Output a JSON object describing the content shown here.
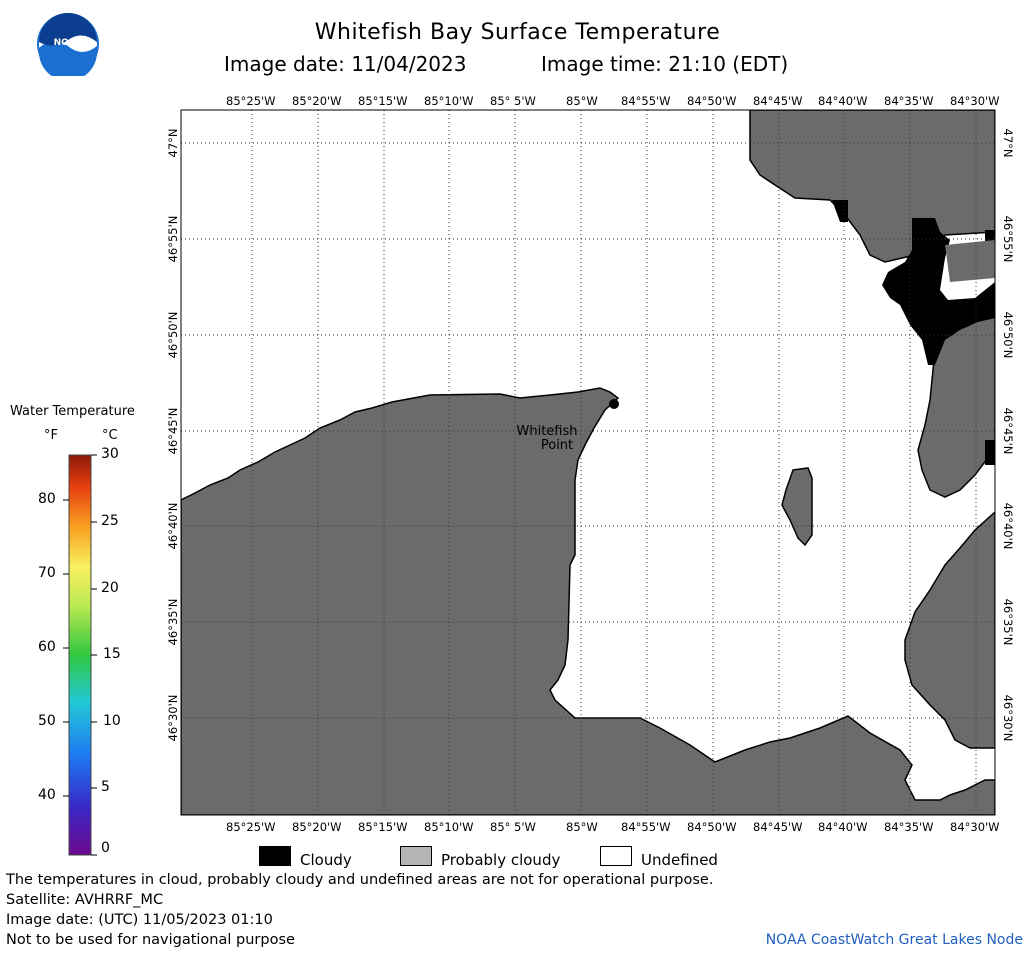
{
  "title": "Whitefish Bay Surface Temperature",
  "image_date_label": "Image date: 11/04/2023",
  "image_time_label": "Image time: 21:10 (EDT)",
  "logo_text": "NOAA",
  "lon_ticks": [
    "85°25'W",
    "85°20'W",
    "85°15'W",
    "85°10'W",
    "85° 5'W",
    "85°W",
    "84°55'W",
    "84°50'W",
    "84°45'W",
    "84°40'W",
    "84°35'W",
    "84°30'W"
  ],
  "lat_ticks": [
    "47°N",
    "46°55'N",
    "46°50'N",
    "46°45'N",
    "46°40'N",
    "46°35'N",
    "46°30'N"
  ],
  "place_label": {
    "line1": "Whitefish",
    "line2": "Point"
  },
  "colorbar": {
    "title": "Water Temperature",
    "unit_f": "°F",
    "unit_c": "°C",
    "f_ticks": [
      "80",
      "70",
      "60",
      "50",
      "40"
    ],
    "c_ticks": [
      "30",
      "25",
      "20",
      "15",
      "10",
      "5",
      "0"
    ],
    "range_c": [
      0,
      30
    ]
  },
  "legend": [
    {
      "label": "Cloudy",
      "color": "#000000"
    },
    {
      "label": "Probably cloudy",
      "color": "#b4b4b4"
    },
    {
      "label": "Undefined",
      "color": "#ffffff"
    }
  ],
  "colors": {
    "land": "#6b6b6b",
    "water": "#ffffff",
    "cloud": "#000000"
  },
  "footer": {
    "line1": "The temperatures in cloud, probably cloudy and undefined areas are not for operational purpose.",
    "line2": "Satellite: AVHRRF_MC",
    "line3": "Image date: (UTC) 11/05/2023  01:10",
    "line4": "Not to be used for navigational purpose"
  },
  "credit": "NOAA CoastWatch Great Lakes Node"
}
